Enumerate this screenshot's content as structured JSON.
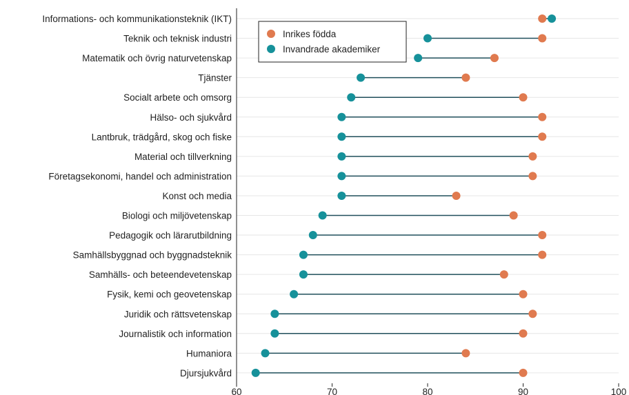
{
  "chart_data": {
    "type": "dumbbell",
    "xlim": [
      60,
      100
    ],
    "xticks": [
      60,
      70,
      80,
      90,
      100
    ],
    "grid": "horizontal",
    "legend_position": "top-left",
    "colors": {
      "line": "#1f4e5a",
      "gridline": "#e6e6e6",
      "axis": "#222222"
    },
    "series": [
      {
        "name": "Inrikes födda",
        "color": "#e07a4f"
      },
      {
        "name": "Invandrade akademiker",
        "color": "#16919a"
      }
    ],
    "rows": [
      {
        "label": "Informations- och kommunikationsteknik (IKT)",
        "inrikes": 92,
        "invandrade": 93
      },
      {
        "label": "Teknik och teknisk industri",
        "inrikes": 92,
        "invandrade": 80
      },
      {
        "label": "Matematik och övrig naturvetenskap",
        "inrikes": 87,
        "invandrade": 79
      },
      {
        "label": "Tjänster",
        "inrikes": 84,
        "invandrade": 73
      },
      {
        "label": "Socialt arbete och omsorg",
        "inrikes": 90,
        "invandrade": 72
      },
      {
        "label": "Hälso- och sjukvård",
        "inrikes": 92,
        "invandrade": 71
      },
      {
        "label": "Lantbruk, trädgård, skog och fiske",
        "inrikes": 92,
        "invandrade": 71
      },
      {
        "label": "Material och tillverkning",
        "inrikes": 91,
        "invandrade": 71
      },
      {
        "label": "Företagsekonomi, handel och administration",
        "inrikes": 91,
        "invandrade": 71
      },
      {
        "label": "Konst och media",
        "inrikes": 83,
        "invandrade": 71
      },
      {
        "label": "Biologi och miljövetenskap",
        "inrikes": 89,
        "invandrade": 69
      },
      {
        "label": "Pedagogik och lärarutbildning",
        "inrikes": 92,
        "invandrade": 68
      },
      {
        "label": "Samhällsbyggnad och byggnadsteknik",
        "inrikes": 92,
        "invandrade": 67
      },
      {
        "label": "Samhälls- och beteendevetenskap",
        "inrikes": 88,
        "invandrade": 67
      },
      {
        "label": "Fysik, kemi och geovetenskap",
        "inrikes": 90,
        "invandrade": 66
      },
      {
        "label": "Juridik och rättsvetenskap",
        "inrikes": 91,
        "invandrade": 64
      },
      {
        "label": "Journalistik och information",
        "inrikes": 90,
        "invandrade": 64
      },
      {
        "label": "Humaniora",
        "inrikes": 84,
        "invandrade": 63
      },
      {
        "label": "Djursjukvård",
        "inrikes": 90,
        "invandrade": 62
      }
    ]
  }
}
